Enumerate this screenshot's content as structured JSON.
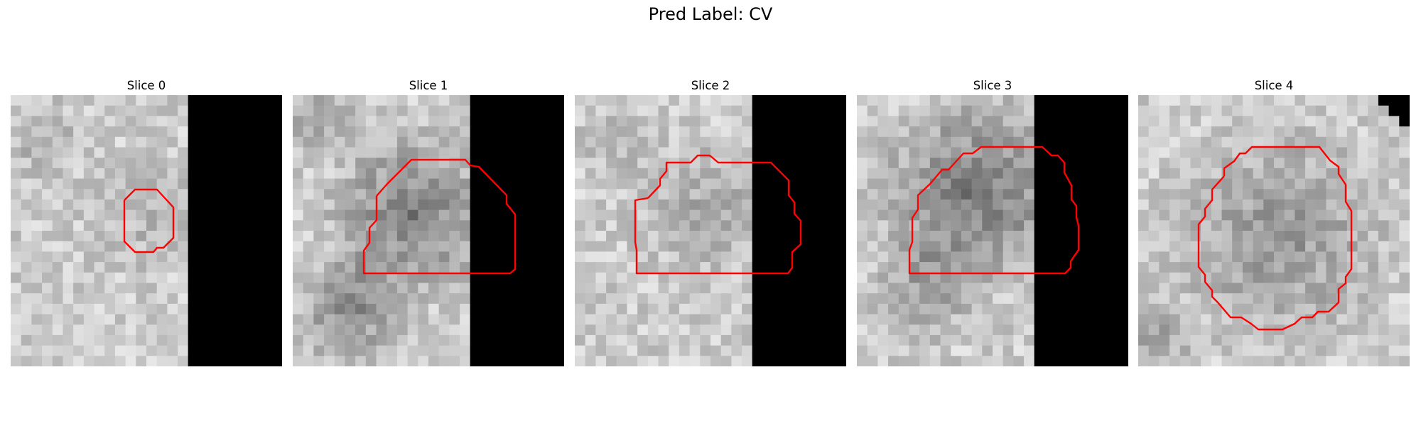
{
  "figure": {
    "title": "Pred Label: CV"
  },
  "panels": [
    {
      "title": "Slice 0",
      "mask_start_col": 17,
      "corner_mask": false
    },
    {
      "title": "Slice 1",
      "mask_start_col": 17,
      "corner_mask": false
    },
    {
      "title": "Slice 2",
      "mask_start_col": 17,
      "corner_mask": false
    },
    {
      "title": "Slice 3",
      "mask_start_col": 17,
      "corner_mask": false
    },
    {
      "title": "Slice 4",
      "mask_start_col": 99,
      "corner_mask": true
    }
  ],
  "colors": {
    "contour": "#ff0000",
    "mask": "#000000"
  }
}
